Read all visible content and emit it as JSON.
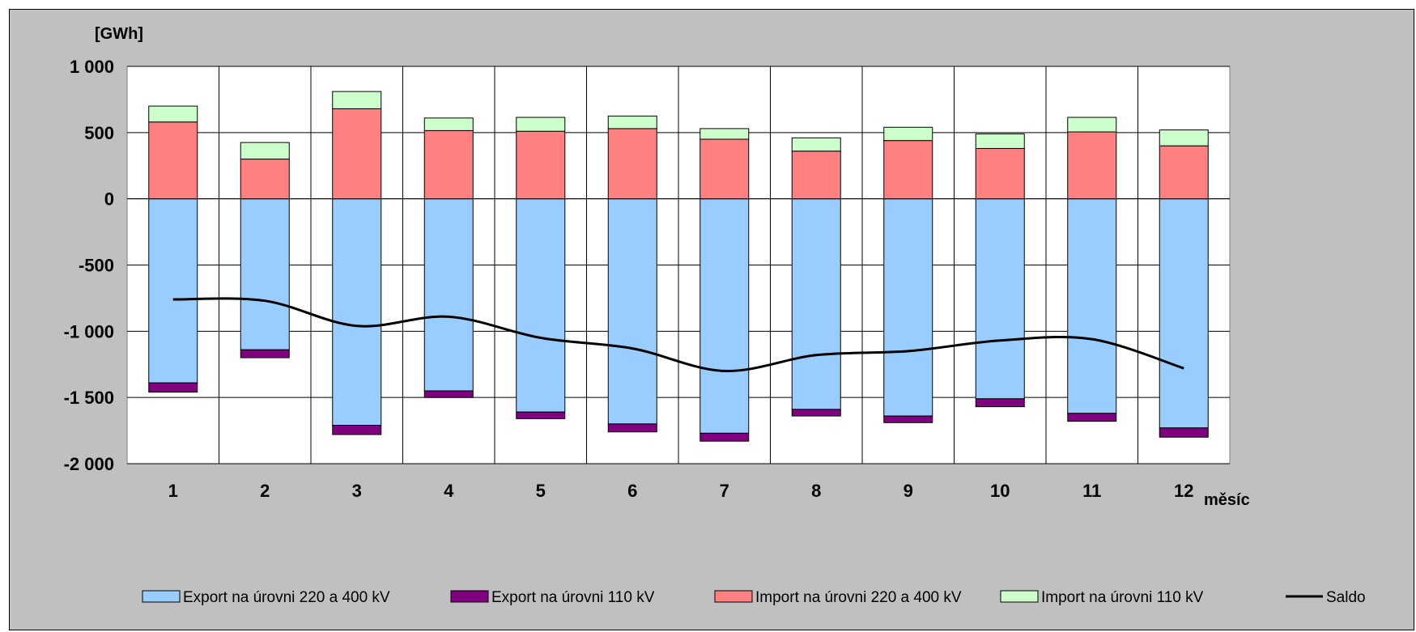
{
  "chart_data": {
    "type": "bar",
    "stacked": true,
    "y_unit_label": "[GWh]",
    "xlabel": "měsíc",
    "categories": [
      "1",
      "2",
      "3",
      "4",
      "5",
      "6",
      "7",
      "8",
      "9",
      "10",
      "11",
      "12"
    ],
    "ylim": [
      -2000,
      1000
    ],
    "y_ticks": [
      1000,
      500,
      0,
      -500,
      -1000,
      -1500,
      -2000
    ],
    "y_tick_labels": [
      "1 000",
      "500",
      "0",
      "-500",
      "-1 000",
      "-1 500",
      "-2 000"
    ],
    "grid": true,
    "legend_position": "bottom",
    "series": [
      {
        "name": "Export na úrovni 220 a 400 kV",
        "color": "#99ccff",
        "kind": "bar",
        "values": [
          -1390,
          -1140,
          -1710,
          -1450,
          -1610,
          -1700,
          -1770,
          -1590,
          -1640,
          -1510,
          -1620,
          -1730
        ]
      },
      {
        "name": "Export na úrovni 110 kV",
        "color": "#800080",
        "kind": "bar",
        "values": [
          -70,
          -60,
          -70,
          -50,
          -50,
          -60,
          -60,
          -50,
          -50,
          -60,
          -60,
          -70
        ]
      },
      {
        "name": "Import na úrovni 220 a 400 kV",
        "color": "#ff8080",
        "kind": "bar",
        "values": [
          580,
          300,
          680,
          515,
          510,
          530,
          450,
          360,
          440,
          380,
          505,
          400
        ]
      },
      {
        "name": "Import na úrovni 110 kV",
        "color": "#ccffcc",
        "kind": "bar",
        "values": [
          120,
          125,
          130,
          95,
          105,
          95,
          80,
          100,
          100,
          110,
          110,
          120
        ]
      },
      {
        "name": "Saldo",
        "color": "#000000",
        "kind": "line",
        "values": [
          -760,
          -770,
          -960,
          -890,
          -1050,
          -1130,
          -1300,
          -1180,
          -1150,
          -1070,
          -1060,
          -1280
        ]
      }
    ]
  }
}
